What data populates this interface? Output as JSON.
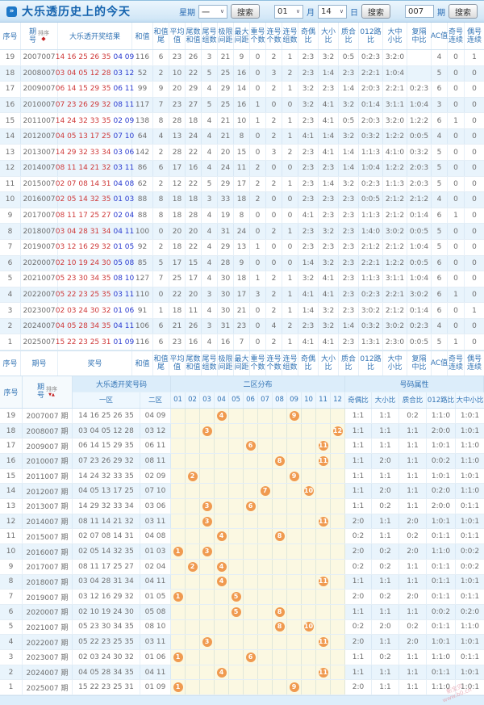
{
  "title_bar": {
    "title": "大乐透历史上的今天",
    "week_label": "星期",
    "week_value": "一",
    "month_value": "01",
    "month_label": "月",
    "day_value": "14",
    "day_label": "日",
    "issue_value": "007",
    "issue_label": "期",
    "search_label": "搜索",
    "caret": "∨",
    "bullet": "»"
  },
  "table1": {
    "head": {
      "no": "序号",
      "issue_top": "期",
      "issue_bottom": "号",
      "sort": "排序",
      "sort_icon": "◆",
      "result": "大乐透开奖结果",
      "sum": "和值",
      "pairs": [
        [
          "和值",
          "尾"
        ],
        [
          "平均",
          "值"
        ],
        [
          "尾数",
          "和值"
        ],
        [
          "尾号",
          "组数"
        ],
        [
          "极限",
          "间距"
        ],
        [
          "最大",
          "间距"
        ],
        [
          "重号",
          "个数"
        ],
        [
          "连号",
          "个数"
        ],
        [
          "连号",
          "组数"
        ],
        [
          "奇偶",
          "比"
        ],
        [
          "大小",
          "比"
        ],
        [
          "质合",
          "比"
        ],
        [
          "012路",
          "比"
        ],
        [
          "大中",
          "小比"
        ],
        [
          "复隔",
          "中比"
        ],
        [
          "AC值",
          ""
        ],
        [
          "奇号",
          "连续"
        ],
        [
          "偶号",
          "连续"
        ]
      ]
    },
    "foot": {
      "no": "序号",
      "issue": "期号",
      "result": "奖号",
      "sum": "和值"
    },
    "rows": [
      {
        "no": "19",
        "issue": "2007007",
        "front": "14 16 25 26 35",
        "back": "04 09",
        "vals": [
          "116",
          "6",
          "23",
          "26",
          "3",
          "21",
          "9",
          "0",
          "2",
          "1",
          "2:3",
          "3:2",
          "0:5",
          "0:2:3",
          "3:2:0",
          "",
          "4",
          "0",
          "1"
        ]
      },
      {
        "no": "18",
        "issue": "2008007",
        "front": "03 04 05 12 28",
        "back": "03 12",
        "vals": [
          "52",
          "2",
          "10",
          "22",
          "5",
          "25",
          "16",
          "0",
          "3",
          "2",
          "2:3",
          "1:4",
          "2:3",
          "2:2:1",
          "1:0:4",
          "",
          "5",
          "0",
          "0"
        ]
      },
      {
        "no": "17",
        "issue": "2009007",
        "front": "06 14 15 29 35",
        "back": "06 11",
        "vals": [
          "99",
          "9",
          "20",
          "29",
          "4",
          "29",
          "14",
          "0",
          "2",
          "1",
          "3:2",
          "2:3",
          "1:4",
          "2:0:3",
          "2:2:1",
          "0:2:3",
          "6",
          "0",
          "0"
        ]
      },
      {
        "no": "16",
        "issue": "2010007",
        "front": "07 23 26 29 32",
        "back": "08 11",
        "vals": [
          "117",
          "7",
          "23",
          "27",
          "5",
          "25",
          "16",
          "1",
          "0",
          "0",
          "3:2",
          "4:1",
          "3:2",
          "0:1:4",
          "3:1:1",
          "1:0:4",
          "3",
          "0",
          "0"
        ]
      },
      {
        "no": "15",
        "issue": "2011007",
        "front": "14 24 32 33 35",
        "back": "02 09",
        "vals": [
          "138",
          "8",
          "28",
          "18",
          "4",
          "21",
          "10",
          "1",
          "2",
          "1",
          "2:3",
          "4:1",
          "0:5",
          "2:0:3",
          "3:2:0",
          "1:2:2",
          "6",
          "1",
          "0"
        ]
      },
      {
        "no": "14",
        "issue": "2012007",
        "front": "04 05 13 17 25",
        "back": "07 10",
        "vals": [
          "64",
          "4",
          "13",
          "24",
          "4",
          "21",
          "8",
          "0",
          "2",
          "1",
          "4:1",
          "1:4",
          "3:2",
          "0:3:2",
          "1:2:2",
          "0:0:5",
          "4",
          "0",
          "0"
        ]
      },
      {
        "no": "13",
        "issue": "2013007",
        "front": "14 29 32 33 34",
        "back": "03 06",
        "vals": [
          "142",
          "2",
          "28",
          "22",
          "4",
          "20",
          "15",
          "0",
          "3",
          "2",
          "2:3",
          "4:1",
          "1:4",
          "1:1:3",
          "4:1:0",
          "0:3:2",
          "5",
          "0",
          "0"
        ]
      },
      {
        "no": "12",
        "issue": "2014007",
        "front": "08 11 14 21 32",
        "back": "03 11",
        "vals": [
          "86",
          "6",
          "17",
          "16",
          "4",
          "24",
          "11",
          "2",
          "0",
          "0",
          "2:3",
          "2:3",
          "1:4",
          "1:0:4",
          "1:2:2",
          "2:0:3",
          "5",
          "0",
          "0"
        ]
      },
      {
        "no": "11",
        "issue": "2015007",
        "front": "02 07 08 14 31",
        "back": "04 08",
        "vals": [
          "62",
          "2",
          "12",
          "22",
          "5",
          "29",
          "17",
          "2",
          "2",
          "1",
          "2:3",
          "1:4",
          "3:2",
          "0:2:3",
          "1:1:3",
          "2:0:3",
          "5",
          "0",
          "0"
        ]
      },
      {
        "no": "10",
        "issue": "2016007",
        "front": "02 05 14 32 35",
        "back": "01 03",
        "vals": [
          "88",
          "8",
          "18",
          "18",
          "3",
          "33",
          "18",
          "2",
          "0",
          "0",
          "2:3",
          "2:3",
          "2:3",
          "0:0:5",
          "2:1:2",
          "2:1:2",
          "4",
          "0",
          "0"
        ]
      },
      {
        "no": "9",
        "issue": "2017007",
        "front": "08 11 17 25 27",
        "back": "02 04",
        "vals": [
          "88",
          "8",
          "18",
          "28",
          "4",
          "19",
          "8",
          "0",
          "0",
          "0",
          "4:1",
          "2:3",
          "2:3",
          "1:1:3",
          "2:1:2",
          "0:1:4",
          "6",
          "1",
          "0"
        ]
      },
      {
        "no": "8",
        "issue": "2018007",
        "front": "03 04 28 31 34",
        "back": "04 11",
        "vals": [
          "100",
          "0",
          "20",
          "20",
          "4",
          "31",
          "24",
          "0",
          "2",
          "1",
          "2:3",
          "3:2",
          "2:3",
          "1:4:0",
          "3:0:2",
          "0:0:5",
          "5",
          "0",
          "0"
        ]
      },
      {
        "no": "7",
        "issue": "2019007",
        "front": "03 12 16 29 32",
        "back": "01 05",
        "vals": [
          "92",
          "2",
          "18",
          "22",
          "4",
          "29",
          "13",
          "1",
          "0",
          "0",
          "2:3",
          "2:3",
          "2:3",
          "2:1:2",
          "2:1:2",
          "1:0:4",
          "5",
          "0",
          "0"
        ]
      },
      {
        "no": "6",
        "issue": "2020007",
        "front": "02 10 19 24 30",
        "back": "05 08",
        "vals": [
          "85",
          "5",
          "17",
          "15",
          "4",
          "28",
          "9",
          "0",
          "0",
          "0",
          "1:4",
          "3:2",
          "2:3",
          "2:2:1",
          "1:2:2",
          "0:0:5",
          "6",
          "0",
          "0"
        ]
      },
      {
        "no": "5",
        "issue": "2021007",
        "front": "05 23 30 34 35",
        "back": "08 10",
        "vals": [
          "127",
          "7",
          "25",
          "17",
          "4",
          "30",
          "18",
          "1",
          "2",
          "1",
          "3:2",
          "4:1",
          "2:3",
          "1:1:3",
          "3:1:1",
          "1:0:4",
          "6",
          "0",
          "0"
        ]
      },
      {
        "no": "4",
        "issue": "2022007",
        "front": "05 22 23 25 35",
        "back": "03 11",
        "vals": [
          "110",
          "0",
          "22",
          "20",
          "3",
          "30",
          "17",
          "3",
          "2",
          "1",
          "4:1",
          "4:1",
          "2:3",
          "0:2:3",
          "2:2:1",
          "3:0:2",
          "6",
          "1",
          "0"
        ]
      },
      {
        "no": "3",
        "issue": "2023007",
        "front": "02 03 24 30 32",
        "back": "01 06",
        "vals": [
          "91",
          "1",
          "18",
          "11",
          "4",
          "30",
          "21",
          "0",
          "2",
          "1",
          "1:4",
          "3:2",
          "2:3",
          "3:0:2",
          "2:1:2",
          "0:1:4",
          "6",
          "0",
          "1"
        ]
      },
      {
        "no": "2",
        "issue": "2024007",
        "front": "04 05 28 34 35",
        "back": "04 11",
        "vals": [
          "106",
          "6",
          "21",
          "26",
          "3",
          "31",
          "23",
          "0",
          "4",
          "2",
          "2:3",
          "3:2",
          "1:4",
          "0:3:2",
          "3:0:2",
          "0:2:3",
          "4",
          "0",
          "0"
        ]
      },
      {
        "no": "1",
        "issue": "2025007",
        "front": "15 22 23 25 31",
        "back": "01 09",
        "vals": [
          "116",
          "6",
          "23",
          "16",
          "4",
          "16",
          "7",
          "0",
          "2",
          "1",
          "4:1",
          "4:1",
          "2:3",
          "1:3:1",
          "2:3:0",
          "0:0:5",
          "5",
          "1",
          "0"
        ]
      }
    ]
  },
  "table2": {
    "head": {
      "no": "序号",
      "issue_top": "期",
      "issue_bottom": "号",
      "sort": "排序",
      "sort_icon_down": "▼",
      "sort_icon_up": "▲",
      "numbers_group": "大乐透开奖号码",
      "zone1": "一区",
      "zone2": "二区",
      "zone_group": "二区分布",
      "positions": [
        "01",
        "02",
        "03",
        "04",
        "05",
        "06",
        "07",
        "08",
        "09",
        "10",
        "11",
        "12"
      ],
      "attr_group": "号码属性",
      "attrs": [
        "奇偶比",
        "大小比",
        "质合比",
        "012路比",
        "大中小比"
      ]
    },
    "rows": [
      {
        "no": "19",
        "issue": "2007007 期",
        "zone1": "14 16 25 26 35",
        "zone2": "04 09",
        "cells": [
          "",
          "",
          "",
          "4",
          "",
          "",
          "",
          "",
          "9",
          "",
          "",
          ""
        ],
        "attrs": [
          "1:1",
          "1:1",
          "0:2",
          "1:1:0",
          "1:0:1"
        ]
      },
      {
        "no": "18",
        "issue": "2008007 期",
        "zone1": "03 04 05 12 28",
        "zone2": "03 12",
        "cells": [
          "",
          "",
          "3",
          "",
          "",
          "",
          "",
          "",
          "",
          "",
          "",
          "12"
        ],
        "attrs": [
          "1:1",
          "1:1",
          "1:1",
          "2:0:0",
          "1:0:1"
        ]
      },
      {
        "no": "17",
        "issue": "2009007 期",
        "zone1": "06 14 15 29 35",
        "zone2": "06 11",
        "cells": [
          "",
          "",
          "",
          "",
          "",
          "6",
          "",
          "",
          "",
          "",
          "11",
          ""
        ],
        "attrs": [
          "1:1",
          "1:1",
          "1:1",
          "1:0:1",
          "1:1:0"
        ]
      },
      {
        "no": "16",
        "issue": "2010007 期",
        "zone1": "07 23 26 29 32",
        "zone2": "08 11",
        "cells": [
          "",
          "",
          "",
          "",
          "",
          "",
          "",
          "8",
          "",
          "",
          "11",
          ""
        ],
        "attrs": [
          "1:1",
          "2:0",
          "1:1",
          "0:0:2",
          "1:1:0"
        ]
      },
      {
        "no": "15",
        "issue": "2011007 期",
        "zone1": "14 24 32 33 35",
        "zone2": "02 09",
        "cells": [
          "",
          "2",
          "",
          "",
          "",
          "",
          "",
          "",
          "9",
          "",
          "",
          ""
        ],
        "attrs": [
          "1:1",
          "1:1",
          "1:1",
          "1:0:1",
          "1:0:1"
        ]
      },
      {
        "no": "14",
        "issue": "2012007 期",
        "zone1": "04 05 13 17 25",
        "zone2": "07 10",
        "cells": [
          "",
          "",
          "",
          "",
          "",
          "",
          "7",
          "",
          "",
          "10",
          "",
          ""
        ],
        "attrs": [
          "1:1",
          "2:0",
          "1:1",
          "0:2:0",
          "1:1:0"
        ]
      },
      {
        "no": "13",
        "issue": "2013007 期",
        "zone1": "14 29 32 33 34",
        "zone2": "03 06",
        "cells": [
          "",
          "",
          "3",
          "",
          "",
          "6",
          "",
          "",
          "",
          "",
          "",
          ""
        ],
        "attrs": [
          "1:1",
          "0:2",
          "1:1",
          "2:0:0",
          "0:1:1"
        ]
      },
      {
        "no": "12",
        "issue": "2014007 期",
        "zone1": "08 11 14 21 32",
        "zone2": "03 11",
        "cells": [
          "",
          "",
          "3",
          "",
          "",
          "",
          "",
          "",
          "",
          "",
          "11",
          ""
        ],
        "attrs": [
          "2:0",
          "1:1",
          "2:0",
          "1:0:1",
          "1:0:1"
        ]
      },
      {
        "no": "11",
        "issue": "2015007 期",
        "zone1": "02 07 08 14 31",
        "zone2": "04 08",
        "cells": [
          "",
          "",
          "",
          "4",
          "",
          "",
          "",
          "8",
          "",
          "",
          "",
          ""
        ],
        "attrs": [
          "0:2",
          "1:1",
          "0:2",
          "0:1:1",
          "0:1:1"
        ]
      },
      {
        "no": "10",
        "issue": "2016007 期",
        "zone1": "02 05 14 32 35",
        "zone2": "01 03",
        "cells": [
          "1",
          "",
          "3",
          "",
          "",
          "",
          "",
          "",
          "",
          "",
          "",
          ""
        ],
        "attrs": [
          "2:0",
          "0:2",
          "2:0",
          "1:1:0",
          "0:0:2"
        ]
      },
      {
        "no": "9",
        "issue": "2017007 期",
        "zone1": "08 11 17 25 27",
        "zone2": "02 04",
        "cells": [
          "",
          "2",
          "",
          "4",
          "",
          "",
          "",
          "",
          "",
          "",
          "",
          ""
        ],
        "attrs": [
          "0:2",
          "0:2",
          "1:1",
          "0:1:1",
          "0:0:2"
        ]
      },
      {
        "no": "8",
        "issue": "2018007 期",
        "zone1": "03 04 28 31 34",
        "zone2": "04 11",
        "cells": [
          "",
          "",
          "",
          "4",
          "",
          "",
          "",
          "",
          "",
          "",
          "11",
          ""
        ],
        "attrs": [
          "1:1",
          "1:1",
          "1:1",
          "0:1:1",
          "1:0:1"
        ]
      },
      {
        "no": "7",
        "issue": "2019007 期",
        "zone1": "03 12 16 29 32",
        "zone2": "01 05",
        "cells": [
          "1",
          "",
          "",
          "",
          "5",
          "",
          "",
          "",
          "",
          "",
          "",
          ""
        ],
        "attrs": [
          "2:0",
          "0:2",
          "2:0",
          "0:1:1",
          "0:1:1"
        ]
      },
      {
        "no": "6",
        "issue": "2020007 期",
        "zone1": "02 10 19 24 30",
        "zone2": "05 08",
        "cells": [
          "",
          "",
          "",
          "",
          "5",
          "",
          "",
          "8",
          "",
          "",
          "",
          ""
        ],
        "attrs": [
          "1:1",
          "1:1",
          "1:1",
          "0:0:2",
          "0:2:0"
        ]
      },
      {
        "no": "5",
        "issue": "2021007 期",
        "zone1": "05 23 30 34 35",
        "zone2": "08 10",
        "cells": [
          "",
          "",
          "",
          "",
          "",
          "",
          "",
          "8",
          "",
          "10",
          "",
          ""
        ],
        "attrs": [
          "0:2",
          "2:0",
          "0:2",
          "0:1:1",
          "1:1:0"
        ]
      },
      {
        "no": "4",
        "issue": "2022007 期",
        "zone1": "05 22 23 25 35",
        "zone2": "03 11",
        "cells": [
          "",
          "",
          "3",
          "",
          "",
          "",
          "",
          "",
          "",
          "",
          "11",
          ""
        ],
        "attrs": [
          "2:0",
          "1:1",
          "2:0",
          "1:0:1",
          "1:0:1"
        ]
      },
      {
        "no": "3",
        "issue": "2023007 期",
        "zone1": "02 03 24 30 32",
        "zone2": "01 06",
        "cells": [
          "1",
          "",
          "",
          "",
          "",
          "6",
          "",
          "",
          "",
          "",
          "",
          ""
        ],
        "attrs": [
          "1:1",
          "0:2",
          "1:1",
          "1:1:0",
          "0:1:1"
        ]
      },
      {
        "no": "2",
        "issue": "2024007 期",
        "zone1": "04 05 28 34 35",
        "zone2": "04 11",
        "cells": [
          "",
          "",
          "",
          "4",
          "",
          "",
          "",
          "",
          "",
          "",
          "11",
          ""
        ],
        "attrs": [
          "1:1",
          "1:1",
          "1:1",
          "0:1:1",
          "1:0:1"
        ]
      },
      {
        "no": "1",
        "issue": "2025007 期",
        "zone1": "15 22 23 25 31",
        "zone2": "01 09",
        "cells": [
          "1",
          "",
          "",
          "",
          "",
          "",
          "",
          "",
          "9",
          "",
          "",
          ""
        ],
        "attrs": [
          "2:0",
          "1:1",
          "1:1",
          "1:1:0",
          "1:0:1"
        ]
      }
    ]
  },
  "watermark": {
    "line1": "新宝贝",
    "line2": "www.b0.cn"
  }
}
